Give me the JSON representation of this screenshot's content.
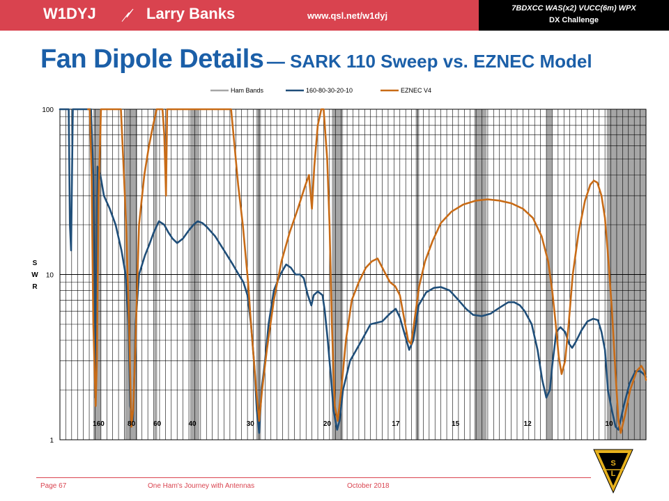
{
  "header": {
    "callsign": "W1DYJ",
    "name": "Larry Banks",
    "url": "www.qsl.net/w1dyj",
    "awards_line1": "7BDXCC  WAS(x2)  VUCC(6m)  WPX",
    "awards_line2": "DX Challenge",
    "bolt_icon": "lightning-icon",
    "colors": {
      "banner": "#d9434f",
      "awards_bg": "#000000",
      "title": "#1b5fa8"
    }
  },
  "slide": {
    "title_main": "Fan Dipole Details",
    "title_sub": "— SARK 110 Sweep vs. EZNEC Model"
  },
  "chart_data": {
    "type": "line",
    "title": "",
    "xlabel": "",
    "ylabel": "SWR",
    "ylabel_letters": [
      "S",
      "W",
      "R"
    ],
    "y_scale": "log",
    "ylim": [
      1,
      100
    ],
    "y_ticks": [
      "100",
      "10",
      "1"
    ],
    "xlim": [
      0,
      100
    ],
    "x_axis_units": "position across sweep (%)",
    "grid": true,
    "legend_position": "top",
    "band_labels": [
      {
        "label": "160",
        "x": 6.6
      },
      {
        "label": "80",
        "x": 12.2
      },
      {
        "label": "60",
        "x": 16.6
      },
      {
        "label": "40",
        "x": 22.6
      },
      {
        "label": "30",
        "x": 32.5
      },
      {
        "label": "20",
        "x": 45.6
      },
      {
        "label": "17",
        "x": 57.3
      },
      {
        "label": "15",
        "x": 67.5
      },
      {
        "label": "12",
        "x": 79.8
      },
      {
        "label": "10",
        "x": 93.7
      }
    ],
    "ham_bands": [
      {
        "x0": 5.7,
        "x1": 7.0
      },
      {
        "x0": 11.1,
        "x1": 13.2
      },
      {
        "x0": 16.1,
        "x1": 16.6
      },
      {
        "x0": 22.2,
        "x1": 23.8
      },
      {
        "x0": 33.5,
        "x1": 34.3
      },
      {
        "x0": 46.4,
        "x1": 48.3
      },
      {
        "x0": 60.7,
        "x1": 61.3
      },
      {
        "x0": 70.7,
        "x1": 72.8
      },
      {
        "x0": 83.0,
        "x1": 84.0
      },
      {
        "x0": 93.3,
        "x1": 100.0
      }
    ],
    "series": [
      {
        "name": "Ham Bands",
        "color": "#a6a6a6",
        "points": []
      },
      {
        "name": "160-80-30-20-10",
        "color": "#1f4e79",
        "points": [
          [
            0,
            100
          ],
          [
            1.5,
            100
          ],
          [
            1.7,
            20
          ],
          [
            1.9,
            14
          ],
          [
            2.2,
            100
          ],
          [
            4.6,
            100
          ],
          [
            5.3,
            100
          ],
          [
            5.7,
            40
          ],
          [
            6.0,
            1.8
          ],
          [
            6.4,
            45
          ],
          [
            6.9,
            40
          ],
          [
            7.5,
            30
          ],
          [
            8.5,
            25
          ],
          [
            9.5,
            20
          ],
          [
            10.5,
            14
          ],
          [
            11.2,
            10
          ],
          [
            11.7,
            5
          ],
          [
            12.0,
            1.6
          ],
          [
            12.5,
            1.3
          ],
          [
            12.9,
            5
          ],
          [
            13.5,
            10
          ],
          [
            14.5,
            13
          ],
          [
            15.2,
            15
          ],
          [
            16.0,
            18
          ],
          [
            16.9,
            21
          ],
          [
            17.8,
            20
          ],
          [
            18.5,
            18
          ],
          [
            19.2,
            16.5
          ],
          [
            20.0,
            15.5
          ],
          [
            21.0,
            16.5
          ],
          [
            22.0,
            18.5
          ],
          [
            22.8,
            20
          ],
          [
            23.5,
            21
          ],
          [
            24.3,
            20.5
          ],
          [
            25.0,
            19.5
          ],
          [
            26.5,
            17
          ],
          [
            28.0,
            14
          ],
          [
            29.5,
            11.5
          ],
          [
            30.5,
            10
          ],
          [
            31.3,
            9
          ],
          [
            32.0,
            7.5
          ],
          [
            32.6,
            5
          ],
          [
            33.1,
            3
          ],
          [
            33.6,
            1.5
          ],
          [
            34.0,
            1.1
          ],
          [
            34.4,
            2
          ],
          [
            35.0,
            3
          ],
          [
            35.6,
            5
          ],
          [
            36.5,
            8
          ],
          [
            37.6,
            10
          ],
          [
            38.6,
            11.5
          ],
          [
            39.4,
            11
          ],
          [
            40.2,
            10
          ],
          [
            41.0,
            10
          ],
          [
            41.6,
            9.5
          ],
          [
            42.3,
            7.5
          ],
          [
            42.9,
            6.5
          ],
          [
            43.3,
            7.5
          ],
          [
            44.0,
            7.9
          ],
          [
            44.8,
            7.5
          ],
          [
            45.2,
            6
          ],
          [
            45.7,
            4
          ],
          [
            46.2,
            2.5
          ],
          [
            46.7,
            1.5
          ],
          [
            47.3,
            1.15
          ],
          [
            47.7,
            1.3
          ],
          [
            48.3,
            2
          ],
          [
            49.5,
            3
          ],
          [
            51.5,
            4
          ],
          [
            53.0,
            5
          ],
          [
            55.0,
            5.2
          ],
          [
            56.3,
            5.8
          ],
          [
            57.3,
            6.2
          ],
          [
            58.0,
            5.5
          ],
          [
            58.7,
            4.5
          ],
          [
            59.6,
            3.5
          ],
          [
            60.3,
            4
          ],
          [
            61.2,
            6.5
          ],
          [
            62.5,
            7.8
          ],
          [
            63.8,
            8.3
          ],
          [
            65.0,
            8.4
          ],
          [
            66.5,
            8.0
          ],
          [
            68.0,
            7.0
          ],
          [
            69.3,
            6.2
          ],
          [
            70.5,
            5.7
          ],
          [
            72.0,
            5.6
          ],
          [
            73.5,
            5.8
          ],
          [
            75.0,
            6.3
          ],
          [
            76.5,
            6.8
          ],
          [
            77.5,
            6.8
          ],
          [
            78.5,
            6.5
          ],
          [
            79.3,
            6.0
          ],
          [
            80.5,
            5.0
          ],
          [
            81.5,
            3.5
          ],
          [
            82.3,
            2.3
          ],
          [
            83.0,
            1.8
          ],
          [
            83.6,
            2
          ],
          [
            84.0,
            2.8
          ],
          [
            84.7,
            4.5
          ],
          [
            85.4,
            4.8
          ],
          [
            86.2,
            4.5
          ],
          [
            86.9,
            3.8
          ],
          [
            87.4,
            3.6
          ],
          [
            88.0,
            3.9
          ],
          [
            89.0,
            4.6
          ],
          [
            90.0,
            5.2
          ],
          [
            91.0,
            5.4
          ],
          [
            91.8,
            5.3
          ],
          [
            92.4,
            4.5
          ],
          [
            93.0,
            3.5
          ],
          [
            93.5,
            2.0
          ],
          [
            94.2,
            1.5
          ],
          [
            94.8,
            1.2
          ],
          [
            95.3,
            1.15
          ],
          [
            96.2,
            1.6
          ],
          [
            97.2,
            2.2
          ],
          [
            98.2,
            2.6
          ],
          [
            99.0,
            2.6
          ],
          [
            99.6,
            2.5
          ],
          [
            100,
            2.4
          ]
        ]
      },
      {
        "name": "EZNEC V4",
        "color": "#c86b16",
        "points": [
          [
            4.8,
            100
          ],
          [
            5.1,
            100
          ],
          [
            5.4,
            40
          ],
          [
            5.7,
            5
          ],
          [
            6.1,
            1.6
          ],
          [
            6.3,
            3
          ],
          [
            6.6,
            30
          ],
          [
            7.0,
            100
          ],
          [
            10.4,
            100
          ],
          [
            10.8,
            50
          ],
          [
            11.3,
            20
          ],
          [
            11.8,
            5
          ],
          [
            12.2,
            1.2
          ],
          [
            12.5,
            1.5
          ],
          [
            12.9,
            4
          ],
          [
            13.5,
            20
          ],
          [
            14.4,
            40
          ],
          [
            15.2,
            60
          ],
          [
            15.9,
            80
          ],
          [
            16.5,
            100
          ],
          [
            17.5,
            100
          ],
          [
            17.8,
            70
          ],
          [
            18.0,
            40
          ],
          [
            18.1,
            30
          ],
          [
            18.3,
            100
          ],
          [
            29.2,
            100
          ],
          [
            29.8,
            60
          ],
          [
            30.4,
            35
          ],
          [
            31.2,
            20
          ],
          [
            32.1,
            9
          ],
          [
            32.6,
            5
          ],
          [
            33.1,
            3
          ],
          [
            33.5,
            2
          ],
          [
            34.0,
            1.3
          ],
          [
            34.5,
            2
          ],
          [
            35.3,
            3.5
          ],
          [
            36.5,
            7
          ],
          [
            37.8,
            12
          ],
          [
            39.2,
            18
          ],
          [
            40.6,
            25
          ],
          [
            41.8,
            34
          ],
          [
            42.5,
            40
          ],
          [
            43.0,
            25
          ],
          [
            43.4,
            45
          ],
          [
            44.0,
            80
          ],
          [
            44.6,
            100
          ],
          [
            45.0,
            100
          ],
          [
            45.6,
            50
          ],
          [
            46.0,
            20
          ],
          [
            46.4,
            5
          ],
          [
            46.9,
            1.6
          ],
          [
            47.4,
            1.3
          ],
          [
            48.0,
            2
          ],
          [
            48.8,
            4
          ],
          [
            49.8,
            7
          ],
          [
            51.0,
            9
          ],
          [
            52.2,
            11
          ],
          [
            53.2,
            12
          ],
          [
            54.2,
            12.5
          ],
          [
            55.3,
            10.5
          ],
          [
            56.3,
            9
          ],
          [
            57.2,
            8.5
          ],
          [
            58.0,
            7.5
          ],
          [
            58.7,
            5.5
          ],
          [
            59.4,
            4
          ],
          [
            59.9,
            3.8
          ],
          [
            60.4,
            5
          ],
          [
            61.3,
            8.5
          ],
          [
            62.3,
            12
          ],
          [
            63.6,
            16
          ],
          [
            65.0,
            20.5
          ],
          [
            66.8,
            24
          ],
          [
            68.8,
            26.5
          ],
          [
            71.0,
            28
          ],
          [
            73.0,
            28.5
          ],
          [
            75.0,
            28
          ],
          [
            77.0,
            27
          ],
          [
            79.0,
            25
          ],
          [
            80.7,
            22
          ],
          [
            82.2,
            17
          ],
          [
            83.3,
            12
          ],
          [
            84.0,
            8
          ],
          [
            84.6,
            5
          ],
          [
            85.1,
            3.2
          ],
          [
            85.6,
            2.5
          ],
          [
            86.2,
            3
          ],
          [
            86.8,
            5
          ],
          [
            87.5,
            10
          ],
          [
            88.5,
            18
          ],
          [
            89.6,
            28
          ],
          [
            90.5,
            35
          ],
          [
            91.1,
            37
          ],
          [
            91.7,
            36
          ],
          [
            92.4,
            30
          ],
          [
            93.0,
            22
          ],
          [
            93.6,
            12
          ],
          [
            94.2,
            6
          ],
          [
            94.8,
            2.5
          ],
          [
            95.3,
            1.3
          ],
          [
            95.7,
            1.1
          ],
          [
            96.4,
            1.4
          ],
          [
            97.3,
            2
          ],
          [
            98.4,
            2.6
          ],
          [
            99.2,
            2.8
          ],
          [
            99.7,
            2.6
          ],
          [
            100,
            2.3
          ]
        ]
      }
    ]
  },
  "footer": {
    "page": "Page 67",
    "book": "One Ham's Journey with Antennas",
    "date": "October 2018",
    "logo_icon": "ssl-club-logo-icon"
  }
}
